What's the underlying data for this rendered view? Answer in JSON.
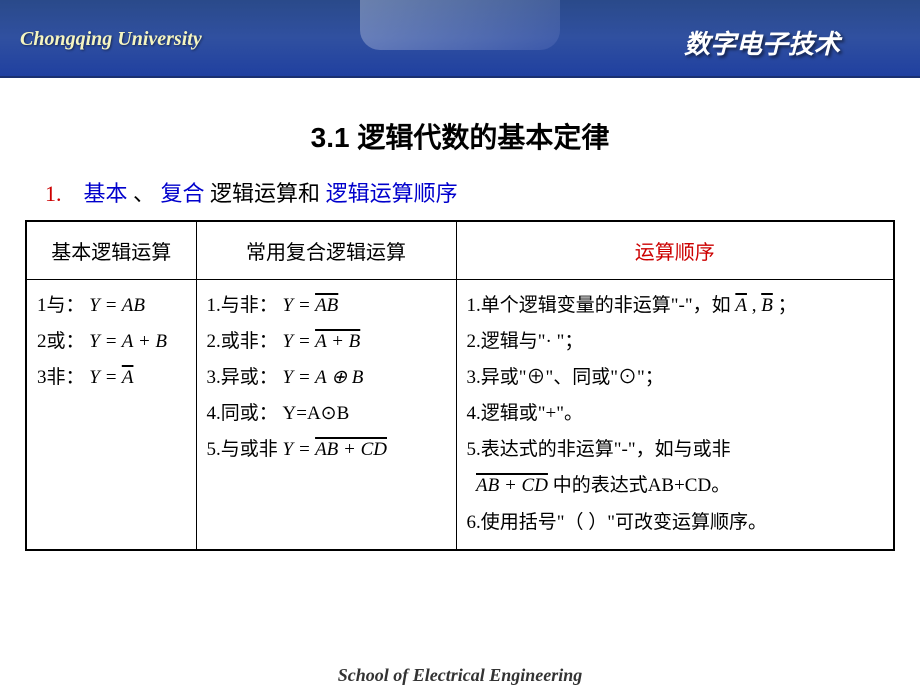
{
  "header": {
    "university": "Chongqing University",
    "course_title": "数字电子技术",
    "bg_gradient_top": "#2a4a8a",
    "bg_gradient_bottom": "#2040a0"
  },
  "section": {
    "number": "3.1",
    "title": "逻辑代数的基本定律",
    "full": "3.1  逻辑代数的基本定律"
  },
  "subsection": {
    "number": "1.",
    "part1": "基本",
    "sep1": "、",
    "part2": "复合",
    "part3": "逻辑运算和",
    "part4": "逻辑运算顺序"
  },
  "table": {
    "headers": {
      "col1": "基本逻辑运算",
      "col2": "常用复合逻辑运算",
      "col3": "运算顺序"
    },
    "col1_items": {
      "r1_label": "1与：",
      "r1_formula": "Y = AB",
      "r2_label": "2或：",
      "r2_formula": "Y = A + B",
      "r3_label": "3非：",
      "r3_var": "Y = ",
      "r3_over": "A"
    },
    "col2_items": {
      "r1_label": "1.与非：",
      "r1_pre": "Y = ",
      "r1_over": "AB",
      "r2_label": "2.或非：",
      "r2_pre": "Y = ",
      "r2_over": "A + B",
      "r3_label": "3.异或：",
      "r3_formula": "Y = A ⊕ B",
      "r4_label": "4.同或：",
      "r4_formula": "Y=A⊙B",
      "r5_label": "5.与或非",
      "r5_pre": "Y = ",
      "r5_over": "AB + CD"
    },
    "col3_items": {
      "r1": "1.单个逻辑变量的非运算\"-\"，如",
      "r1_overA": "A",
      "r1_sep": " , ",
      "r1_overB": "B",
      "r1_end": "   ；",
      "r2": "2.逻辑与\"· \"；",
      "r3": "3.异或\"⊕\"、同或\"⊙\"；",
      "r4": "4.逻辑或\"+\"。",
      "r5a": "5.表达式的非运算\"-\"，如与或非",
      "r5_over": "AB + CD",
      "r5b": " 中的表达式AB+CD。",
      "r6": "6.使用括号\"（ ）\"可改变运算顺序。"
    }
  },
  "footer": {
    "text": "School of Electrical Engineering"
  },
  "colors": {
    "header_text": "#f5f5c0",
    "title_text": "#ffffff",
    "red": "#cc0000",
    "blue": "#0000cc",
    "black": "#000000"
  }
}
